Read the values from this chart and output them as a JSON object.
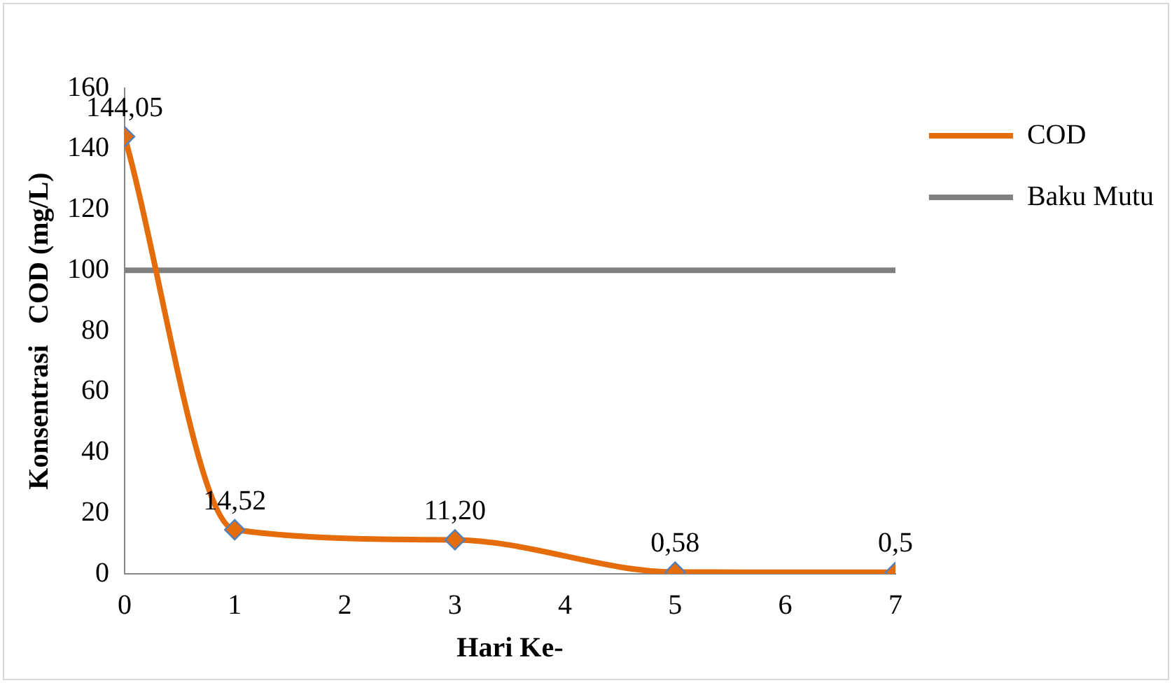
{
  "chart_data": {
    "type": "line",
    "xlabel": "Hari Ke-",
    "ylabel": "Konsentrasi   COD (mg/L)",
    "xlim": [
      0,
      7
    ],
    "xticks": [
      0,
      1,
      2,
      3,
      4,
      5,
      6,
      7
    ],
    "ylim": [
      0,
      160
    ],
    "yticks": [
      0,
      20,
      40,
      60,
      80,
      100,
      120,
      140,
      160
    ],
    "grid": false,
    "legend": "top right",
    "series": [
      {
        "name": "COD",
        "color": "#e46c0a",
        "x": [
          0,
          1,
          3,
          5,
          7
        ],
        "values": [
          144.05,
          14.52,
          11.2,
          0.58,
          0.5
        ],
        "marker": "diamond",
        "value_labels": [
          "144,05",
          "14,52",
          "11,20",
          "0,58",
          "0,5"
        ]
      },
      {
        "name": "Baku Mutu",
        "color": "#808080",
        "x": [
          0,
          7
        ],
        "values": [
          100,
          100
        ],
        "marker": "none"
      }
    ]
  }
}
